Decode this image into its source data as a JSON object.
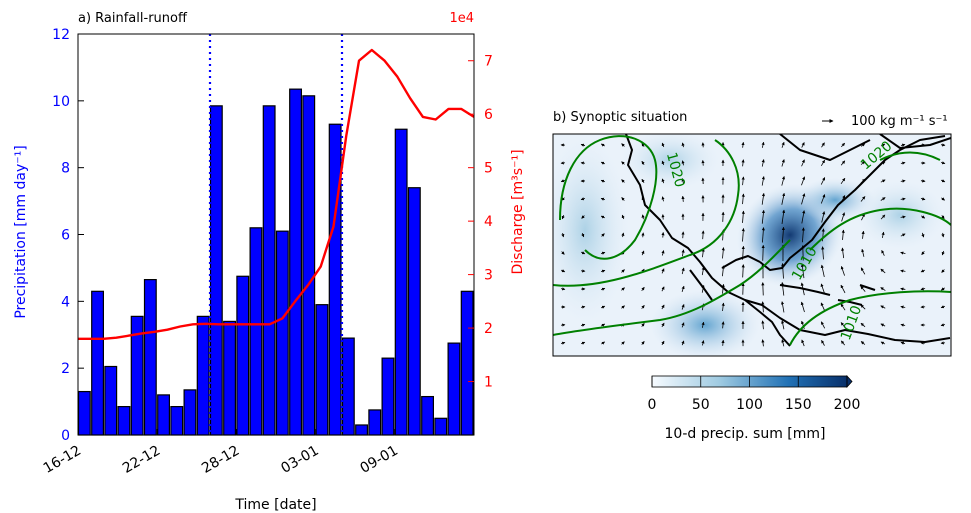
{
  "chart_data": [
    {
      "type": "bar",
      "panel_title": "a) Rainfall-runoff",
      "xlabel": "Time [date]",
      "x_tick_labels": [
        "16-12",
        "22-12",
        "28-12",
        "03-01",
        "09-01"
      ],
      "x_tick_index": [
        0,
        6,
        12,
        18,
        24
      ],
      "series": [
        {
          "axis": "left",
          "values": [
            1.3,
            4.3,
            2.05,
            0.85,
            3.55,
            4.65,
            1.2,
            0.85,
            1.35,
            3.55,
            9.85,
            3.4,
            4.75,
            6.2,
            9.85,
            6.1,
            10.35,
            10.15,
            3.9,
            9.3,
            2.9,
            0.3,
            0.75,
            2.3,
            9.15,
            7.4,
            1.15,
            0.5,
            2.75,
            4.3
          ],
          "color": "#0000ff"
        },
        {
          "axis": "right",
          "type": "line",
          "values": [
            1.8,
            1.8,
            1.8,
            1.82,
            1.86,
            1.9,
            1.93,
            1.97,
            2.03,
            2.07,
            2.08,
            2.07,
            2.07,
            2.07,
            2.07,
            2.07,
            2.18,
            2.5,
            2.8,
            3.15,
            3.9,
            5.6,
            7.0,
            7.2,
            7.0,
            6.7,
            6.3,
            5.95,
            5.9,
            6.1,
            6.1,
            5.95
          ],
          "color": "#ff0000"
        }
      ],
      "ylabel_left": "Precipitation [mm day⁻¹]",
      "ylim_left": [
        0,
        12
      ],
      "yticks_left": [
        "0",
        "2",
        "4",
        "6",
        "8",
        "10",
        "12"
      ],
      "ylabel_right": "Discharge [m³s⁻¹]",
      "y_right_multiplier": "1e4",
      "ylim_right": [
        0,
        7.5
      ],
      "yticks_right": [
        "1",
        "2",
        "3",
        "4",
        "5",
        "6",
        "7"
      ],
      "vertical_lines": [
        {
          "x_index": 10,
          "style": "dotted",
          "color": "#0000ff"
        },
        {
          "x_index": 20,
          "style": "dotted",
          "color": "#0000ff"
        }
      ],
      "grid": false
    },
    {
      "type": "map",
      "panel_title": "b) Synoptic situation",
      "reference_vector_label": "100 kg m⁻¹ s⁻¹",
      "colorbar": {
        "label": "10-d precip. sum [mm]",
        "ticks": [
          "0",
          "50",
          "100",
          "150",
          "200"
        ],
        "range": [
          0,
          200
        ],
        "colors": [
          "#f7fbff",
          "#08306b"
        ]
      },
      "contour_labels": [
        "1020",
        "1010",
        "1010",
        "1020"
      ],
      "contour_color": "#008000"
    }
  ]
}
